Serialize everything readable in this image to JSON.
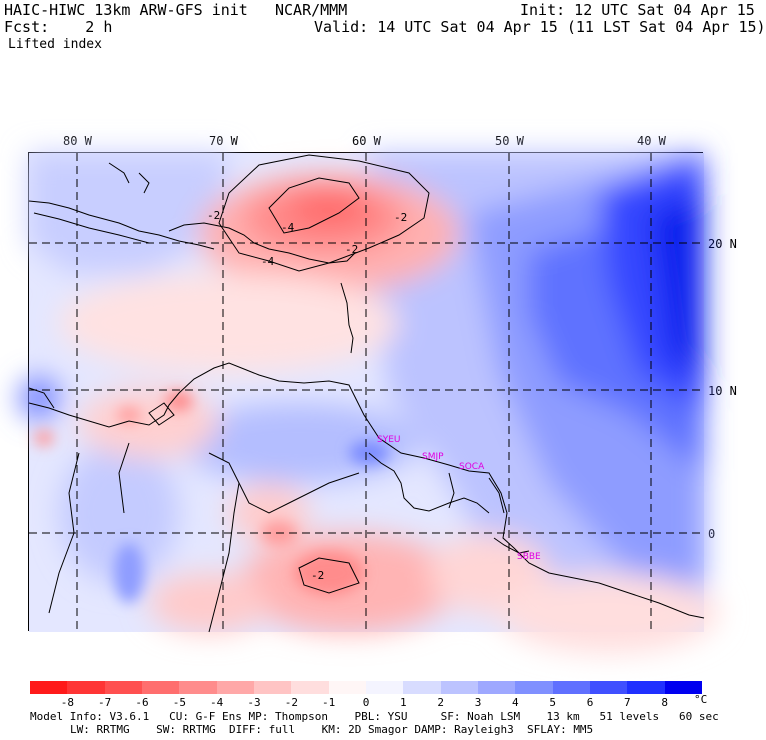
{
  "header": {
    "model": "HAIC-HIWC 13km ARW-GFS init",
    "org": "NCAR/MMM",
    "init": "Init: 12 UTC Sat 04 Apr 15",
    "fcst": "Fcst:    2 h",
    "valid": "Valid: 14 UTC Sat 04 Apr 15 (11 LST Sat 04 Apr 15)",
    "field": "Lifted index"
  },
  "map": {
    "lon_labels": [
      "80 W",
      "70 W",
      "60 W",
      "50 W",
      "40 W"
    ],
    "lat_labels": [
      "20 N",
      "10 N",
      "0"
    ],
    "contour_labels": [
      "-2",
      "-4",
      "-2",
      "-2",
      "-4",
      "-2"
    ],
    "stations": [
      "SYEU",
      "SMJP",
      "SOCA",
      "SBBE"
    ],
    "station_color": "#e000e0",
    "cold_color": "#0000ff",
    "warm_color": "#ff2020"
  },
  "legend": {
    "labels": [
      "-8",
      "-7",
      "-6",
      "-5",
      "-4",
      "-3",
      "-2",
      "-1",
      "0",
      "1",
      "2",
      "3",
      "4",
      "5",
      "6",
      "7",
      "8"
    ],
    "unit": "°C",
    "colors": [
      "#ff1a1a",
      "#ff3535",
      "#ff5050",
      "#ff6e6e",
      "#ff8c8c",
      "#ffa8a8",
      "#ffc4c4",
      "#ffdede",
      "#fff6f6",
      "#f4f4ff",
      "#d8dcff",
      "#bcc3ff",
      "#9ea8ff",
      "#8090ff",
      "#6070ff",
      "#4050ff",
      "#2030ff",
      "#0000f0"
    ]
  },
  "footer": {
    "line1": "Model Info: V3.6.1   CU: G-F Ens MP: Thompson    PBL: YSU     SF: Noah LSM    13 km   51 levels   60 sec",
    "line2": "LW: RRTMG    SW: RRTMG  DIFF: full    KM: 2D Smagor DAMP: Rayleigh3  SFLAY: MM5"
  }
}
